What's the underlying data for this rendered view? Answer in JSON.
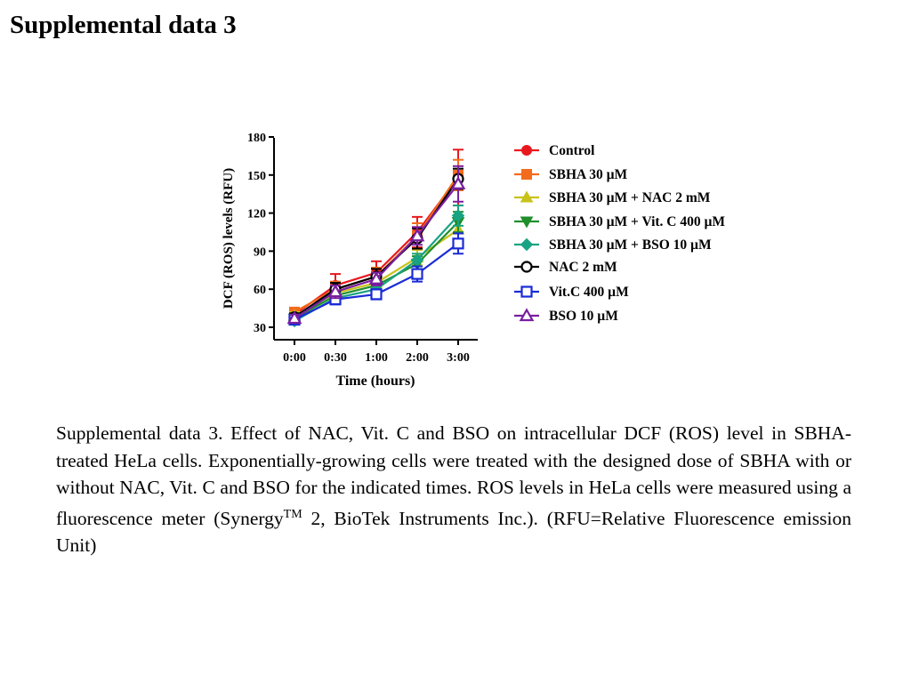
{
  "page": {
    "title": "Supplemental data 3"
  },
  "caption": {
    "text_before_sup": "Supplemental data 3. Effect of NAC, Vit. C and BSO on intracellular DCF (ROS) level in SBHA-treated HeLa cells. Exponentially-growing cells were treated with the designed dose of SBHA with or without NAC, Vit. C and BSO for the indicated times. ROS levels in HeLa cells were measured using a fluorescence meter (Synergy",
    "sup": "TM",
    "text_after_sup": " 2, BioTek Instruments Inc.). (RFU=Relative Fluorescence emission Unit)"
  },
  "chart_data": {
    "type": "line",
    "xlabel": "Time (hours)",
    "ylabel": "DCF (ROS) levels (RFU)",
    "categories": [
      "0:00",
      "0:30",
      "1:00",
      "2:00",
      "3:00"
    ],
    "ylim": [
      30,
      180
    ],
    "yticks": [
      30,
      60,
      90,
      120,
      150,
      180
    ],
    "grid": false,
    "legend_position": "right",
    "series": [
      {
        "name": "Control",
        "color": "#e8191e",
        "marker": "circle-filled",
        "values": [
          40,
          63,
          73,
          105,
          148
        ],
        "errors": [
          3,
          9,
          9,
          12,
          22
        ]
      },
      {
        "name": "SBHA 30 µM",
        "color": "#f36b1c",
        "marker": "square-filled",
        "values": [
          42,
          60,
          70,
          102,
          150
        ],
        "errors": [
          3,
          6,
          7,
          10,
          12
        ]
      },
      {
        "name": "SBHA 30 µM + NAC 2 mM",
        "color": "#c8c21a",
        "marker": "triangle-up-filled",
        "values": [
          39,
          57,
          65,
          85,
          107
        ],
        "errors": [
          3,
          5,
          5,
          6,
          8
        ]
      },
      {
        "name": "SBHA 30 µM + Vit. C 400 µM",
        "color": "#1f8f2c",
        "marker": "triangle-down-filled",
        "values": [
          37,
          55,
          63,
          80,
          113
        ],
        "errors": [
          3,
          5,
          5,
          6,
          8
        ]
      },
      {
        "name": "SBHA 30 µM + BSO 10 µM",
        "color": "#1aa383",
        "marker": "diamond-filled",
        "values": [
          35,
          53,
          60,
          83,
          118
        ],
        "errors": [
          3,
          4,
          5,
          5,
          8
        ]
      },
      {
        "name": "NAC 2 mM",
        "color": "#000000",
        "marker": "circle-open",
        "values": [
          38,
          60,
          70,
          100,
          147
        ],
        "errors": [
          3,
          5,
          6,
          8,
          8
        ]
      },
      {
        "name": "Vit.C 400 µM",
        "color": "#1a2bd6",
        "marker": "square-open",
        "values": [
          36,
          52,
          56,
          72,
          96
        ],
        "errors": [
          3,
          4,
          4,
          6,
          8
        ]
      },
      {
        "name": "BSO 10 µM",
        "color": "#7a1fa0",
        "marker": "triangle-up-open",
        "values": [
          37,
          58,
          68,
          102,
          143
        ],
        "errors": [
          3,
          5,
          5,
          7,
          14
        ]
      }
    ]
  }
}
